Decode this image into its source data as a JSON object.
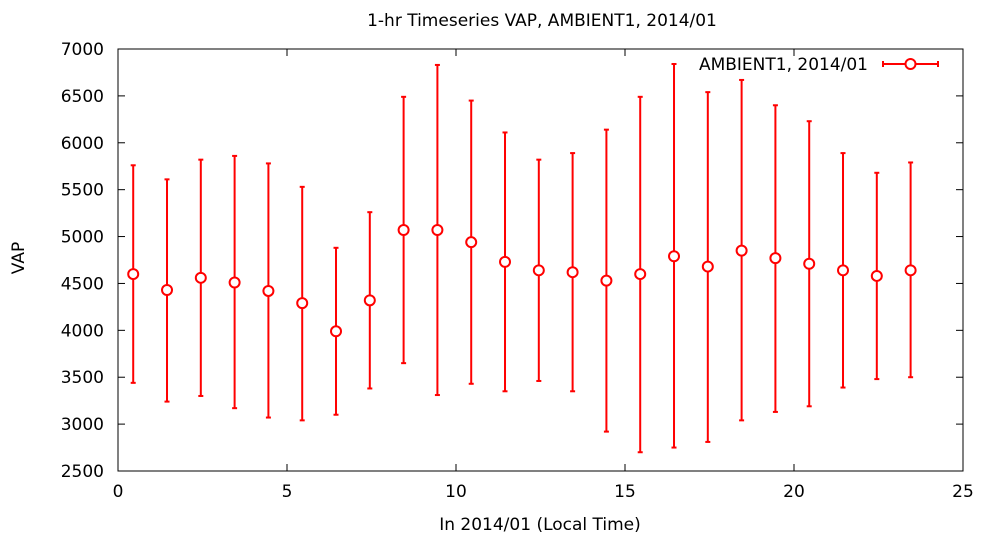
{
  "chart_data": {
    "type": "scatter",
    "title": "1-hr Timeseries VAP, AMBIENT1, 2014/01",
    "xlabel": "In 2014/01 (Local Time)",
    "ylabel": "VAP",
    "xlim": [
      0,
      25
    ],
    "ylim": [
      2500,
      7000
    ],
    "xticks": [
      0,
      5,
      10,
      15,
      20,
      25
    ],
    "yticks": [
      2500,
      3000,
      3500,
      4000,
      4500,
      5000,
      5500,
      6000,
      6500,
      7000
    ],
    "grid": false,
    "legend_position": "top-right",
    "series": [
      {
        "name": "AMBIENT1, 2014/01",
        "color": "#ff0000",
        "marker": "open-circle",
        "error_bars": true,
        "points": [
          {
            "x": 0.45,
            "y": 4600,
            "ylow": 3440,
            "yhigh": 5760
          },
          {
            "x": 1.45,
            "y": 4430,
            "ylow": 3240,
            "yhigh": 5610
          },
          {
            "x": 2.45,
            "y": 4560,
            "ylow": 3300,
            "yhigh": 5820
          },
          {
            "x": 3.45,
            "y": 4510,
            "ylow": 3170,
            "yhigh": 5860
          },
          {
            "x": 4.45,
            "y": 4420,
            "ylow": 3070,
            "yhigh": 5780
          },
          {
            "x": 5.45,
            "y": 4290,
            "ylow": 3040,
            "yhigh": 5530
          },
          {
            "x": 6.45,
            "y": 3990,
            "ylow": 3100,
            "yhigh": 4880
          },
          {
            "x": 7.45,
            "y": 4320,
            "ylow": 3380,
            "yhigh": 5260
          },
          {
            "x": 8.45,
            "y": 5070,
            "ylow": 3650,
            "yhigh": 6490
          },
          {
            "x": 9.45,
            "y": 5070,
            "ylow": 3310,
            "yhigh": 6830
          },
          {
            "x": 10.45,
            "y": 4940,
            "ylow": 3430,
            "yhigh": 6450
          },
          {
            "x": 11.45,
            "y": 4730,
            "ylow": 3350,
            "yhigh": 6110
          },
          {
            "x": 12.45,
            "y": 4640,
            "ylow": 3460,
            "yhigh": 5820
          },
          {
            "x": 13.45,
            "y": 4620,
            "ylow": 3350,
            "yhigh": 5890
          },
          {
            "x": 14.45,
            "y": 4530,
            "ylow": 2920,
            "yhigh": 6140
          },
          {
            "x": 15.45,
            "y": 4600,
            "ylow": 2700,
            "yhigh": 6490
          },
          {
            "x": 16.45,
            "y": 4790,
            "ylow": 2750,
            "yhigh": 6840
          },
          {
            "x": 17.45,
            "y": 4680,
            "ylow": 2810,
            "yhigh": 6540
          },
          {
            "x": 18.45,
            "y": 4850,
            "ylow": 3040,
            "yhigh": 6670
          },
          {
            "x": 19.45,
            "y": 4770,
            "ylow": 3130,
            "yhigh": 6400
          },
          {
            "x": 20.45,
            "y": 4710,
            "ylow": 3190,
            "yhigh": 6230
          },
          {
            "x": 21.45,
            "y": 4640,
            "ylow": 3390,
            "yhigh": 5890
          },
          {
            "x": 22.45,
            "y": 4580,
            "ylow": 3480,
            "yhigh": 5680
          },
          {
            "x": 23.45,
            "y": 4640,
            "ylow": 3500,
            "yhigh": 5790
          }
        ]
      }
    ]
  }
}
